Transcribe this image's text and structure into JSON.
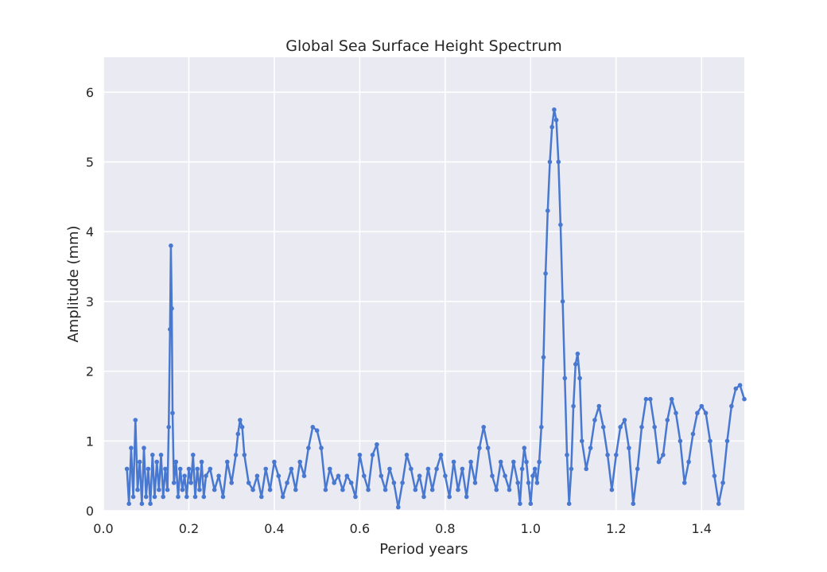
{
  "chart_data": {
    "type": "line",
    "title": "Global Sea Surface Height Spectrum",
    "xlabel": "Period years",
    "ylabel": "Amplitude (mm)",
    "xlim": [
      0.0,
      1.5
    ],
    "ylim": [
      0,
      6.5
    ],
    "xticks": [
      0.0,
      0.2,
      0.4,
      0.6,
      0.8,
      1.0,
      1.2,
      1.4
    ],
    "xtick_labels": [
      "0.0",
      "0.2",
      "0.4",
      "0.6",
      "0.8",
      "1.0",
      "1.2",
      "1.4"
    ],
    "yticks": [
      0,
      1,
      2,
      3,
      4,
      5,
      6
    ],
    "ytick_labels": [
      "0",
      "1",
      "2",
      "3",
      "4",
      "5",
      "6"
    ],
    "grid": true,
    "style": "seaborn-darkgrid",
    "colors": {
      "line": "#4878cf",
      "plot_bg": "#eaeaf2",
      "grid": "#ffffff",
      "text": "#262626"
    },
    "series": [
      {
        "marker": "dot",
        "x": [
          0.055,
          0.06,
          0.065,
          0.07,
          0.075,
          0.08,
          0.085,
          0.09,
          0.095,
          0.1,
          0.105,
          0.11,
          0.115,
          0.12,
          0.125,
          0.13,
          0.135,
          0.14,
          0.145,
          0.15,
          0.153,
          0.156,
          0.158,
          0.16,
          0.162,
          0.165,
          0.17,
          0.175,
          0.18,
          0.185,
          0.19,
          0.195,
          0.2,
          0.205,
          0.21,
          0.215,
          0.22,
          0.225,
          0.23,
          0.235,
          0.24,
          0.25,
          0.26,
          0.27,
          0.28,
          0.29,
          0.3,
          0.31,
          0.315,
          0.32,
          0.325,
          0.33,
          0.34,
          0.35,
          0.36,
          0.37,
          0.38,
          0.39,
          0.4,
          0.41,
          0.42,
          0.43,
          0.44,
          0.45,
          0.46,
          0.47,
          0.48,
          0.49,
          0.5,
          0.51,
          0.52,
          0.53,
          0.54,
          0.55,
          0.56,
          0.57,
          0.58,
          0.59,
          0.6,
          0.61,
          0.62,
          0.63,
          0.64,
          0.65,
          0.66,
          0.67,
          0.68,
          0.69,
          0.7,
          0.71,
          0.72,
          0.73,
          0.74,
          0.75,
          0.76,
          0.77,
          0.78,
          0.79,
          0.8,
          0.81,
          0.82,
          0.83,
          0.84,
          0.85,
          0.86,
          0.87,
          0.88,
          0.89,
          0.9,
          0.91,
          0.92,
          0.93,
          0.94,
          0.95,
          0.96,
          0.97,
          0.975,
          0.98,
          0.985,
          0.99,
          0.995,
          1.0,
          1.005,
          1.01,
          1.015,
          1.02,
          1.025,
          1.03,
          1.035,
          1.04,
          1.045,
          1.05,
          1.055,
          1.06,
          1.065,
          1.07,
          1.075,
          1.08,
          1.085,
          1.09,
          1.095,
          1.1,
          1.105,
          1.11,
          1.115,
          1.12,
          1.13,
          1.14,
          1.15,
          1.16,
          1.17,
          1.18,
          1.19,
          1.2,
          1.21,
          1.22,
          1.23,
          1.24,
          1.25,
          1.26,
          1.27,
          1.28,
          1.29,
          1.3,
          1.31,
          1.32,
          1.33,
          1.34,
          1.35,
          1.36,
          1.37,
          1.38,
          1.39,
          1.4,
          1.41,
          1.42,
          1.43,
          1.44,
          1.45,
          1.46,
          1.47,
          1.48,
          1.49,
          1.5
        ],
        "y": [
          0.6,
          0.1,
          0.9,
          0.2,
          1.3,
          0.3,
          0.7,
          0.1,
          0.9,
          0.2,
          0.6,
          0.1,
          0.8,
          0.2,
          0.7,
          0.3,
          0.8,
          0.2,
          0.6,
          0.3,
          1.2,
          2.6,
          3.8,
          2.9,
          1.4,
          0.4,
          0.7,
          0.2,
          0.6,
          0.3,
          0.5,
          0.2,
          0.6,
          0.4,
          0.8,
          0.2,
          0.6,
          0.3,
          0.7,
          0.2,
          0.5,
          0.6,
          0.3,
          0.5,
          0.2,
          0.7,
          0.4,
          0.8,
          1.1,
          1.3,
          1.2,
          0.8,
          0.4,
          0.3,
          0.5,
          0.2,
          0.6,
          0.3,
          0.7,
          0.5,
          0.2,
          0.4,
          0.6,
          0.3,
          0.7,
          0.5,
          0.9,
          1.2,
          1.15,
          0.9,
          0.3,
          0.6,
          0.4,
          0.5,
          0.3,
          0.5,
          0.4,
          0.2,
          0.8,
          0.5,
          0.3,
          0.8,
          0.95,
          0.5,
          0.3,
          0.6,
          0.4,
          0.05,
          0.4,
          0.8,
          0.6,
          0.3,
          0.5,
          0.2,
          0.6,
          0.3,
          0.6,
          0.8,
          0.5,
          0.2,
          0.7,
          0.3,
          0.6,
          0.2,
          0.7,
          0.4,
          0.9,
          1.2,
          0.9,
          0.5,
          0.3,
          0.7,
          0.5,
          0.3,
          0.7,
          0.4,
          0.1,
          0.6,
          0.9,
          0.7,
          0.4,
          0.1,
          0.5,
          0.6,
          0.4,
          0.7,
          1.2,
          2.2,
          3.4,
          4.3,
          5.0,
          5.5,
          5.75,
          5.6,
          5.0,
          4.1,
          3.0,
          1.9,
          0.8,
          0.1,
          0.6,
          1.5,
          2.1,
          2.25,
          1.9,
          1.0,
          0.6,
          0.9,
          1.3,
          1.5,
          1.2,
          0.8,
          0.3,
          0.8,
          1.2,
          1.3,
          0.9,
          0.1,
          0.6,
          1.2,
          1.6,
          1.6,
          1.2,
          0.7,
          0.8,
          1.3,
          1.6,
          1.4,
          1.0,
          0.4,
          0.7,
          1.1,
          1.4,
          1.5,
          1.4,
          1.0,
          0.5,
          0.1,
          0.4,
          1.0,
          1.5,
          1.75,
          1.8,
          1.6
        ]
      }
    ]
  }
}
